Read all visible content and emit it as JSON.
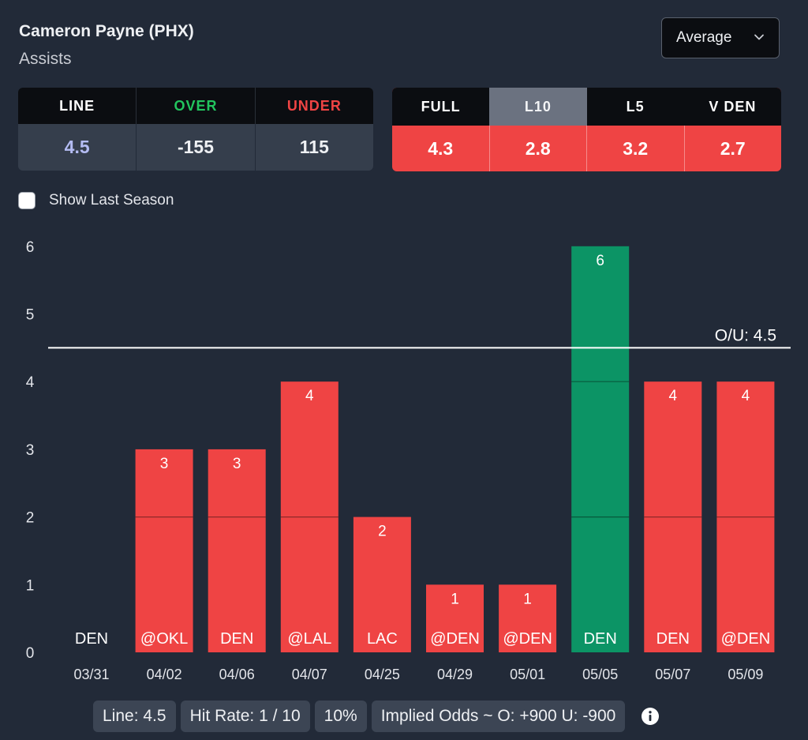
{
  "header": {
    "title": "Cameron Payne (PHX)",
    "subtitle": "Assists"
  },
  "dropdown": {
    "selected": "Average",
    "icon": "chevron-down-icon"
  },
  "odds_table": {
    "headers": [
      "LINE",
      "OVER",
      "UNDER"
    ],
    "values": [
      "4.5",
      "-155",
      "115"
    ],
    "header_colors": [
      "#ffffff",
      "#22c55e",
      "#ef4444"
    ],
    "value_colors": [
      "#b4bcf3",
      "#eef0f3",
      "#eef0f3"
    ]
  },
  "avg_table": {
    "headers": [
      "FULL",
      "L10",
      "L5",
      "V DEN"
    ],
    "values": [
      "4.3",
      "2.8",
      "3.2",
      "2.7"
    ],
    "active_index": 1
  },
  "season_toggle": {
    "label": "Show Last Season",
    "checked": false
  },
  "chart_data": {
    "type": "bar",
    "categories": [
      "03/31",
      "04/02",
      "04/06",
      "04/07",
      "04/25",
      "04/29",
      "05/01",
      "05/05",
      "05/07",
      "05/09"
    ],
    "opponents": [
      "DEN",
      "@OKL",
      "DEN",
      "@LAL",
      "LAC",
      "@DEN",
      "@DEN",
      "DEN",
      "DEN",
      "@DEN"
    ],
    "values": [
      0,
      3,
      3,
      4,
      2,
      1,
      1,
      6,
      4,
      4
    ],
    "ylim": [
      0,
      6
    ],
    "yticks": [
      "0",
      "1",
      "2",
      "3",
      "4",
      "5",
      "6"
    ],
    "line_value": 4.5,
    "line_label": "O/U: 4.5",
    "over_color": "#0c9465",
    "under_color": "#ef4444",
    "title": "",
    "xlabel": "",
    "ylabel": ""
  },
  "stats": {
    "line": "Line: 4.5",
    "hit_rate": "Hit Rate: 1 / 10",
    "hit_pct": "10%",
    "implied_odds": "Implied Odds ~ O: +900 U: -900",
    "icon": "info-icon"
  }
}
